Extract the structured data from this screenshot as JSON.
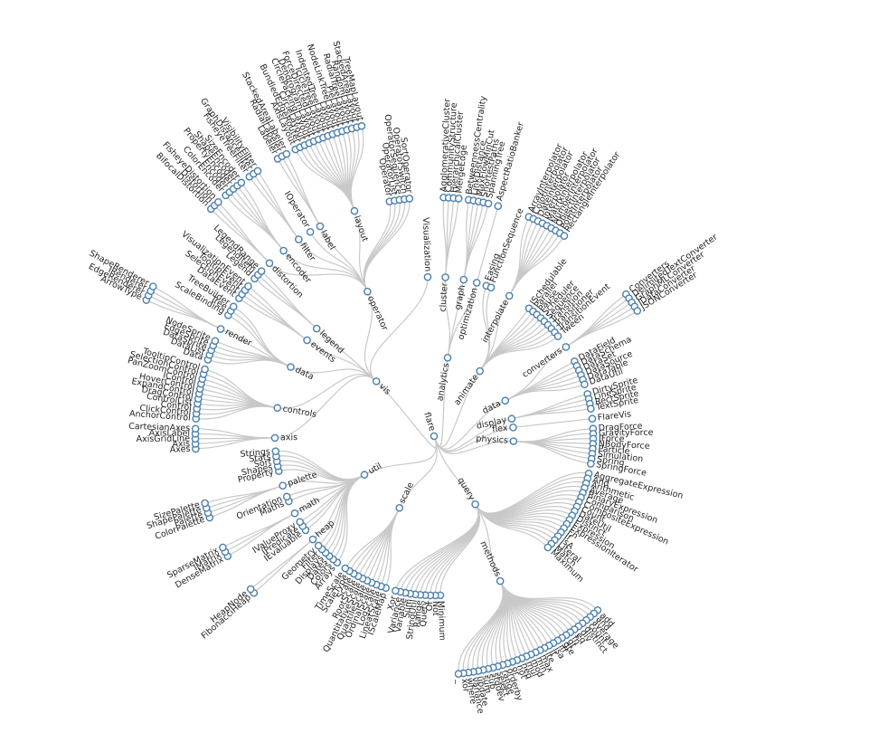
{
  "tree": {
    "name": "flare",
    "children": [
      {
        "name": "analytics",
        "children": [
          {
            "name": "cluster",
            "children": [
              "AgglomerativeCluster",
              "CommunityStructure",
              "HierarchicalCluster",
              "MergeEdge"
            ]
          },
          {
            "name": "graph",
            "children": [
              "BetweennessCentrality",
              "LinkDistance",
              "MaxFlowMinCut",
              "ShortestPaths",
              "SpanningTree"
            ]
          },
          {
            "name": "optimization",
            "children": [
              "AspectRatioBanker"
            ]
          }
        ]
      },
      {
        "name": "animate",
        "children": [
          "Easing",
          "FunctionSequence",
          {
            "name": "interpolate",
            "children": [
              "ArrayInterpolator",
              "ColorInterpolator",
              "DateInterpolator",
              "Interpolator",
              "MatrixInterpolator",
              "NumberInterpolator",
              "ObjectInterpolator",
              "PointInterpolator",
              "RectangleInterpolator"
            ]
          },
          "ISchedulable",
          "Parallel",
          "Pause",
          "Scheduler",
          "Sequence",
          "Transition",
          "Transitioner",
          "TransitionEvent",
          "Tween"
        ]
      },
      {
        "name": "data",
        "children": [
          {
            "name": "converters",
            "children": [
              "Converters",
              "DelimitedTextConverter",
              "GraphMLConverter",
              "IDataConverter",
              "JSONConverter"
            ]
          },
          "DataField",
          "DataSchema",
          "DataSet",
          "DataSource",
          "DataTable",
          "DataUtil"
        ]
      },
      {
        "name": "display",
        "children": [
          "DirtySprite",
          "LineSprite",
          "RectSprite",
          "TextSprite"
        ]
      },
      {
        "name": "flex",
        "children": [
          "FlareVis"
        ]
      },
      {
        "name": "physics",
        "children": [
          "DragForce",
          "GravityForce",
          "IForce",
          "NBodyForce",
          "Particle",
          "Simulation",
          "Spring",
          "SpringForce"
        ]
      },
      {
        "name": "query",
        "children": [
          "AggregateExpression",
          "And",
          "Arithmetic",
          "Average",
          "BinaryExpression",
          "Comparison",
          "CompositeExpression",
          "Count",
          "DateUtil",
          "Distinct",
          "Expression",
          "ExpressionIterator",
          "Fn",
          "If",
          "IsA",
          "Literal",
          "Match",
          "Maximum",
          {
            "name": "methods",
            "children": [
              "add",
              "and",
              "average",
              "count",
              "distinct",
              "div",
              "eq",
              "fn",
              "gt",
              "gte",
              "iff",
              "isa",
              "lt",
              "lte",
              "max",
              "min",
              "mod",
              "mul",
              "neq",
              "not",
              "or",
              "orderby",
              "range",
              "select",
              "stddev",
              "sub",
              "sum",
              "update",
              "variance",
              "where",
              "xor",
              "_"
            ]
          },
          "Minimum",
          "Not",
          "Or",
          "Query",
          "Range",
          "StringUtil",
          "Sum",
          "Variable",
          "Variance",
          "Xor"
        ]
      },
      {
        "name": "scale",
        "children": [
          "IScaleMap",
          "LinearScale",
          "LogScale",
          "OrdinalScale",
          "QuantileScale",
          "QuantitativeScale",
          "RootScale",
          "Scale",
          "ScaleType",
          "TimeScale"
        ]
      },
      {
        "name": "util",
        "children": [
          "Arrays",
          "Colors",
          "Dates",
          "Displays",
          "Filter",
          "Geometry",
          {
            "name": "heap",
            "children": [
              "FibonacciHeap",
              "HeapNode"
            ]
          },
          "IEvaluable",
          "IPredicate",
          "IValueProxy",
          {
            "name": "math",
            "children": [
              "DenseMatrix",
              "IMatrix",
              "SparseMatrix"
            ]
          },
          "Maths",
          "Orientation",
          {
            "name": "palette",
            "children": [
              "ColorPalette",
              "Palette",
              "ShapePalette",
              "SizePalette"
            ]
          },
          "Property",
          "Shapes",
          "Sort",
          "Stats",
          "Strings"
        ]
      },
      {
        "name": "vis",
        "children": [
          {
            "name": "axis",
            "children": [
              "Axes",
              "Axis",
              "AxisGridLine",
              "AxisLabel",
              "CartesianAxes"
            ]
          },
          {
            "name": "controls",
            "children": [
              "AnchorControl",
              "ClickControl",
              "Control",
              "ControlList",
              "DragControl",
              "ExpandControl",
              "HoverControl",
              "IControl",
              "PanZoomControl",
              "SelectionControl",
              "TooltipControl"
            ]
          },
          {
            "name": "data",
            "children": [
              "Data",
              "DataList",
              "DataSprite",
              "EdgeSprite",
              "NodeSprite",
              {
                "name": "render",
                "children": [
                  "ArrowType",
                  "EdgeRenderer",
                  "IRenderer",
                  "ShapeRenderer"
                ]
              },
              "ScaleBinding",
              "Tree",
              "TreeBuilder"
            ]
          },
          {
            "name": "events",
            "children": [
              "DataEvent",
              "SelectionEvent",
              "TooltipEvent",
              "VisualizationEvent"
            ]
          },
          {
            "name": "legend",
            "children": [
              "Legend",
              "LegendItem",
              "LegendRange"
            ]
          },
          {
            "name": "operator",
            "children": [
              {
                "name": "distortion",
                "children": [
                  "BifocalDistortion",
                  "Distortion",
                  "FisheyeDistortion"
                ]
              },
              {
                "name": "encoder",
                "children": [
                  "ColorEncoder",
                  "Encoder",
                  "PropertyEncoder",
                  "ShapeEncoder",
                  "SizeEncoder"
                ]
              },
              {
                "name": "filter",
                "children": [
                  "FisheyeTreeFilter",
                  "GraphDistanceFilter",
                  "VisibilityFilter"
                ]
              },
              "IOperator",
              {
                "name": "label",
                "children": [
                  "Labeler",
                  "RadialLabeler",
                  "StackedAreaLabeler"
                ]
              },
              {
                "name": "layout",
                "children": [
                  "AxisLayout",
                  "BundledEdgeRouter",
                  "CircleLayout",
                  "CirclePackingLayout",
                  "DendrogramLayout",
                  "ForceDirectedLayout",
                  "IcicleTreeLayout",
                  "IndentedTreeLayout",
                  "Layout",
                  "NodeLinkTreeLayout",
                  "PieLayout",
                  "RadialTreeLayout",
                  "RandomLayout",
                  "StackedAreaLayout",
                  "TreeMapLayout"
                ]
              },
              "Operator",
              "OperatorList",
              "OperatorSequence",
              "OperatorSwitch",
              "SortOperator"
            ]
          },
          "Visualization"
        ]
      }
    ]
  }
}
